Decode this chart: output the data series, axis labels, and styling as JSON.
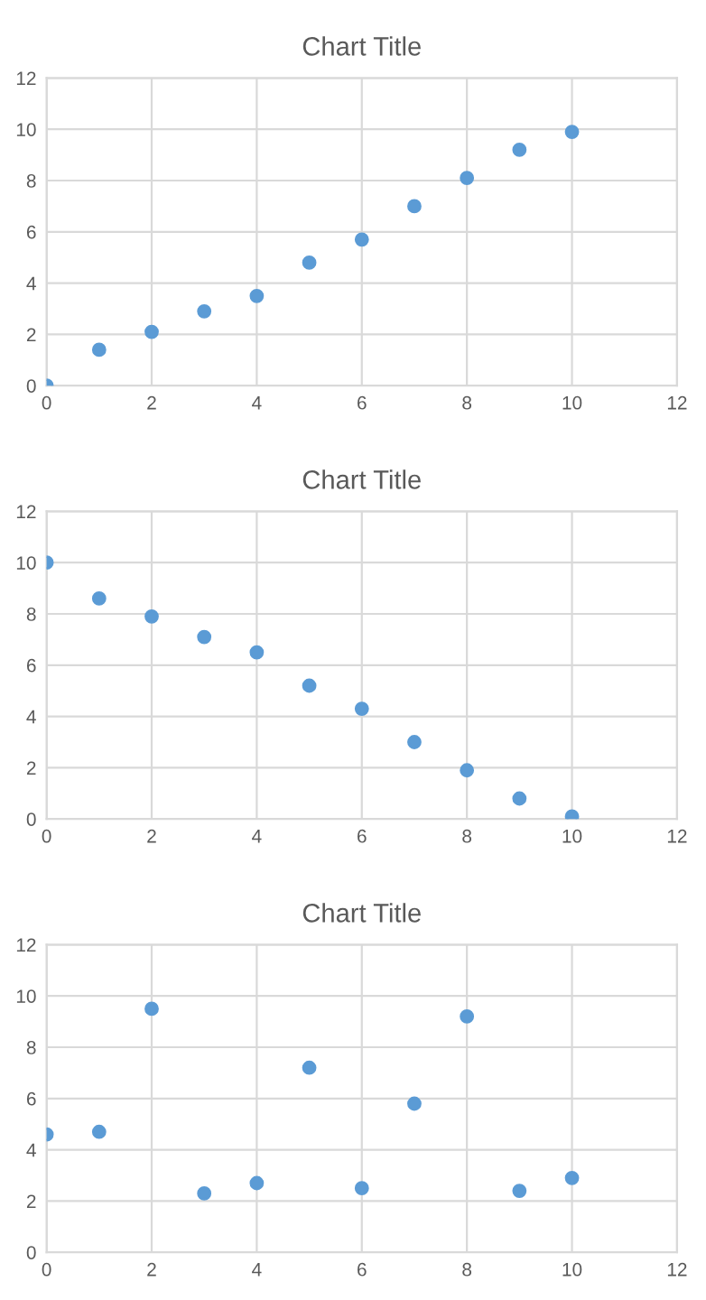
{
  "chart_data": [
    {
      "type": "scatter",
      "title": "Chart Title",
      "x": [
        0,
        1,
        2,
        3,
        4,
        5,
        6,
        7,
        8,
        9,
        10
      ],
      "series": [
        {
          "color": "#5b9bd5",
          "values": [
            0,
            1.4,
            2.1,
            2.9,
            3.5,
            4.8,
            5.7,
            7.0,
            8.1,
            9.2,
            9.9
          ]
        }
      ],
      "xlim": [
        0,
        12
      ],
      "ylim": [
        0,
        12
      ],
      "xticks": [
        0,
        2,
        4,
        6,
        8,
        10,
        12
      ],
      "yticks": [
        0,
        2,
        4,
        6,
        8,
        10,
        12
      ],
      "grid": true,
      "marker": "circle"
    },
    {
      "type": "scatter",
      "title": "Chart Title",
      "x": [
        0,
        1,
        2,
        3,
        4,
        5,
        6,
        7,
        8,
        9,
        10
      ],
      "series": [
        {
          "color": "#5b9bd5",
          "values": [
            10,
            8.6,
            7.9,
            7.1,
            6.5,
            5.2,
            4.3,
            3.0,
            1.9,
            0.8,
            0.1
          ]
        }
      ],
      "xlim": [
        0,
        12
      ],
      "ylim": [
        0,
        12
      ],
      "xticks": [
        0,
        2,
        4,
        6,
        8,
        10,
        12
      ],
      "yticks": [
        0,
        2,
        4,
        6,
        8,
        10,
        12
      ],
      "grid": true,
      "marker": "circle"
    },
    {
      "type": "scatter",
      "title": "Chart Title",
      "x": [
        0,
        1,
        2,
        3,
        4,
        5,
        6,
        7,
        8,
        9,
        10
      ],
      "series": [
        {
          "color": "#5b9bd5",
          "values": [
            4.6,
            4.7,
            9.5,
            2.3,
            2.7,
            7.2,
            2.5,
            5.8,
            9.2,
            2.4,
            2.9
          ]
        }
      ],
      "xlim": [
        0,
        12
      ],
      "ylim": [
        0,
        12
      ],
      "xticks": [
        0,
        2,
        4,
        6,
        8,
        10,
        12
      ],
      "yticks": [
        0,
        2,
        4,
        6,
        8,
        10,
        12
      ],
      "grid": true,
      "marker": "circle"
    }
  ]
}
